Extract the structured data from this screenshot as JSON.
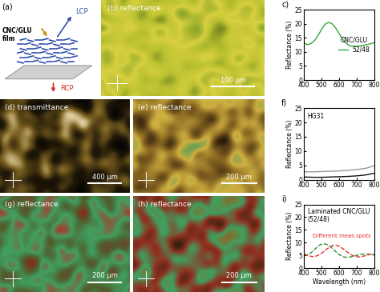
{
  "panels": [
    {
      "label": "(a)",
      "texts": [
        "CNC/GLU\nfilm",
        "LCP",
        "RCP"
      ]
    },
    {
      "label": "(b) reflectance",
      "scale_bar": "100 µm"
    },
    {
      "label": "(d) transmittance",
      "scale_bar": "400 µm"
    },
    {
      "label": "(e) reflectance",
      "scale_bar": "200 µm"
    },
    {
      "label": "(g) reflectance",
      "scale_bar": "200 µm"
    },
    {
      "label": "(h) reflectance",
      "scale_bar": "200 µm"
    }
  ],
  "chart_data": [
    {
      "type": "line",
      "title": "c)",
      "ylabel": "Reflectance (%)",
      "xlim": [
        400,
        800
      ],
      "xticks": [
        400,
        500,
        600,
        700,
        800
      ],
      "ylim": [
        0,
        25
      ],
      "yticks": [
        0,
        5,
        10,
        15,
        20,
        25
      ],
      "annotations": [
        "CNC/GLU"
      ],
      "legend": "center right",
      "x": [
        400,
        420,
        440,
        460,
        480,
        500,
        520,
        540,
        560,
        580,
        600,
        620,
        640,
        660,
        680,
        700,
        720,
        740,
        760,
        780,
        800
      ],
      "series": [
        {
          "name": "52/48",
          "color": "#3aa63a",
          "line_style": "solid",
          "values": [
            13.2,
            12.5,
            13.0,
            14.0,
            15.8,
            18.0,
            19.8,
            20.5,
            20.0,
            18.5,
            16.5,
            14.5,
            13.0,
            12.2,
            12.0,
            12.0,
            12.1,
            12.3,
            12.6,
            12.9,
            13.3
          ]
        }
      ]
    },
    {
      "type": "line",
      "title": "f)",
      "ylabel": "Reflectance (%)",
      "xlim": [
        400,
        800
      ],
      "xticks": [
        400,
        500,
        600,
        700,
        800
      ],
      "ylim": [
        0,
        25
      ],
      "yticks": [
        0,
        5,
        10,
        15,
        20,
        25
      ],
      "annotations": [
        "HG31"
      ],
      "x": [
        400,
        450,
        500,
        550,
        600,
        650,
        700,
        750,
        800
      ],
      "series": [
        {
          "color": "#999999",
          "line_style": "solid",
          "values": [
            2.8,
            2.8,
            2.9,
            3.0,
            3.1,
            3.3,
            3.6,
            4.0,
            4.9
          ]
        },
        {
          "color": "#111111",
          "line_style": "solid",
          "values": [
            1.0,
            0.9,
            0.9,
            1.0,
            1.1,
            1.2,
            1.4,
            1.7,
            2.3
          ]
        }
      ]
    },
    {
      "type": "line",
      "title": "i)",
      "ylabel": "Reflectance (%)",
      "xlabel": "Wavelength (nm)",
      "xlim": [
        400,
        800
      ],
      "xticks": [
        400,
        500,
        600,
        700,
        800
      ],
      "ylim": [
        0,
        25
      ],
      "yticks": [
        0,
        5,
        10,
        15,
        20,
        25
      ],
      "annotations": [
        "Laminated CNC/GLU\n(52/48)",
        "Different meas.spots"
      ],
      "x": [
        400,
        420,
        440,
        460,
        480,
        500,
        520,
        540,
        560,
        580,
        600,
        620,
        640,
        660,
        680,
        700,
        720,
        740,
        760,
        780,
        800
      ],
      "series": [
        {
          "color": "#2e8b2e",
          "line_style": "dashed",
          "values": [
            5.0,
            5.2,
            6.0,
            7.3,
            8.6,
            9.4,
            9.5,
            9.0,
            7.8,
            6.5,
            5.3,
            4.5,
            4.2,
            4.3,
            4.6,
            5.0,
            5.3,
            5.5,
            5.5,
            5.3,
            5.1
          ]
        },
        {
          "color": "#e03030",
          "line_style": "dashed",
          "values": [
            5.5,
            5.0,
            4.6,
            4.5,
            5.0,
            5.8,
            6.9,
            8.0,
            8.8,
            9.0,
            8.6,
            7.7,
            6.6,
            5.6,
            4.8,
            4.4,
            4.4,
            4.7,
            5.1,
            5.4,
            5.5
          ]
        }
      ]
    }
  ]
}
